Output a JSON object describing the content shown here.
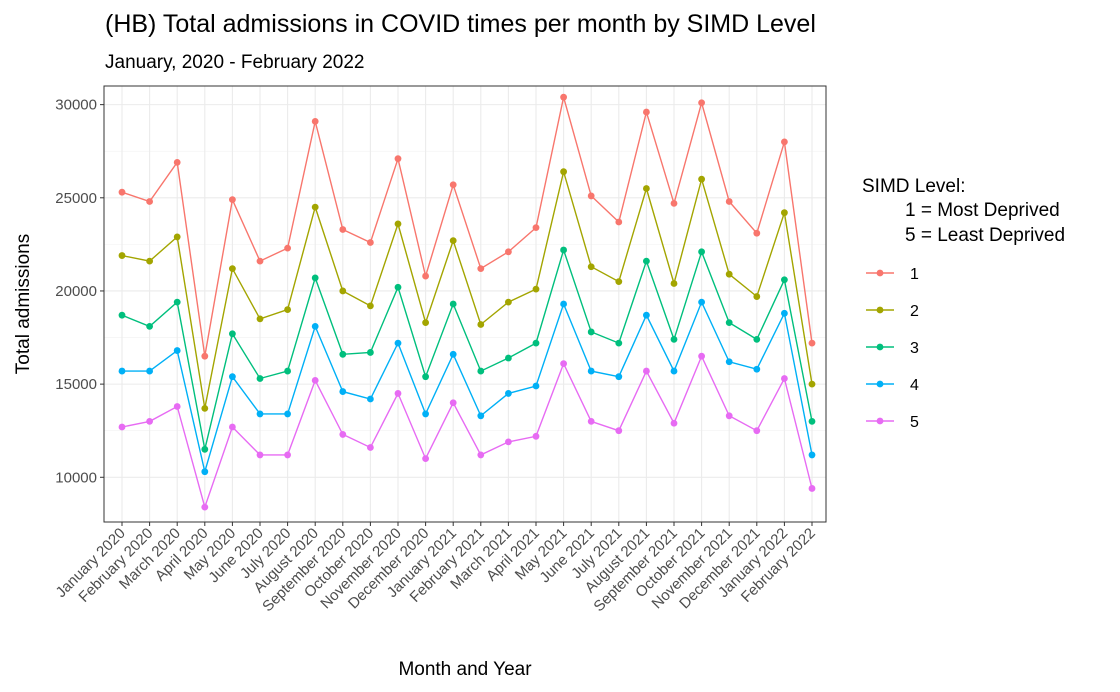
{
  "chart_data": {
    "type": "line",
    "title": "(HB) Total admissions in COVID times per month by SIMD Level",
    "subtitle": "January, 2020 - February 2022",
    "xlabel": "Month and Year",
    "ylabel": "Total admissions",
    "ylim": [
      7600,
      31000
    ],
    "yticks": [
      10000,
      15000,
      20000,
      25000,
      30000
    ],
    "grid": true,
    "legend": {
      "position": "right",
      "title_lines": [
        "SIMD Level:",
        "1 = Most Deprived",
        "5 = Least Deprived"
      ]
    },
    "categories": [
      "January 2020",
      "February 2020",
      "March 2020",
      "April 2020",
      "May 2020",
      "June 2020",
      "July 2020",
      "August 2020",
      "September 2020",
      "October 2020",
      "November 2020",
      "December 2020",
      "January 2021",
      "February 2021",
      "March 2021",
      "April 2021",
      "May 2021",
      "June 2021",
      "July 2021",
      "August 2021",
      "September 2021",
      "October 2021",
      "November 2021",
      "December 2021",
      "January 2022",
      "February 2022"
    ],
    "series": [
      {
        "name": "1",
        "color": "#F8766D",
        "values": [
          25300,
          24800,
          26900,
          16500,
          24900,
          21600,
          22300,
          29100,
          23300,
          22600,
          27100,
          20800,
          25700,
          21200,
          22100,
          23400,
          30400,
          25100,
          23700,
          29600,
          24700,
          30100,
          24800,
          23100,
          28000,
          17200
        ]
      },
      {
        "name": "2",
        "color": "#A3A500",
        "values": [
          21900,
          21600,
          22900,
          13700,
          21200,
          18500,
          19000,
          24500,
          20000,
          19200,
          23600,
          18300,
          22700,
          18200,
          19400,
          20100,
          26400,
          21300,
          20500,
          25500,
          20400,
          26000,
          20900,
          19700,
          24200,
          15000
        ]
      },
      {
        "name": "3",
        "color": "#00BF7D",
        "values": [
          18700,
          18100,
          19400,
          11500,
          17700,
          15300,
          15700,
          20700,
          16600,
          16700,
          20200,
          15400,
          19300,
          15700,
          16400,
          17200,
          22200,
          17800,
          17200,
          21600,
          17400,
          22100,
          18300,
          17400,
          20600,
          13000
        ]
      },
      {
        "name": "4",
        "color": "#00B0F6",
        "values": [
          15700,
          15700,
          16800,
          10300,
          15400,
          13400,
          13400,
          18100,
          14600,
          14200,
          17200,
          13400,
          16600,
          13300,
          14500,
          14900,
          19300,
          15700,
          15400,
          18700,
          15700,
          19400,
          16200,
          15800,
          18800,
          11200
        ]
      },
      {
        "name": "5",
        "color": "#E76BF3",
        "values": [
          12700,
          13000,
          13800,
          8400,
          12700,
          11200,
          11200,
          15200,
          12300,
          11600,
          14500,
          11000,
          14000,
          11200,
          11900,
          12200,
          16100,
          13000,
          12500,
          15700,
          12900,
          16500,
          13300,
          12500,
          15300,
          9400
        ]
      }
    ]
  }
}
